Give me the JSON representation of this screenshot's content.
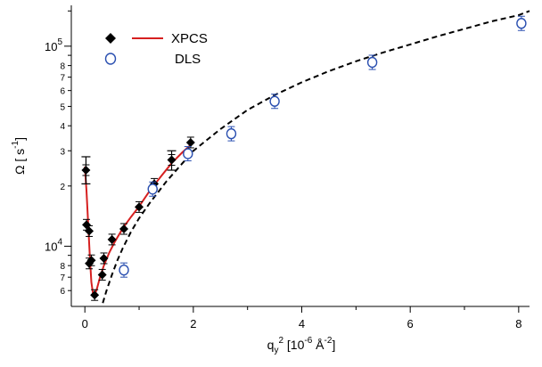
{
  "chart_data": {
    "type": "scatter",
    "title": "",
    "xlabel": {
      "base": "q",
      "sub": "y",
      "sup": "2",
      "rest": "[10",
      "exp": "-6",
      "unit": " Å",
      "unit_exp": "-2",
      "close": "]"
    },
    "ylabel": {
      "base": "Ω [ s",
      "exp": "-1",
      "close": "]"
    },
    "xlim": [
      -0.25,
      8.2
    ],
    "ylim": [
      5000,
      160000
    ],
    "y_scale": "log",
    "x_ticks": [
      0,
      2,
      4,
      6,
      8
    ],
    "x_tick_labels": [
      "0",
      "2",
      "4",
      "6",
      "8"
    ],
    "y_major_ticks": [
      10000,
      100000
    ],
    "y_major_labels": [
      {
        "base": "10",
        "exp": "4"
      },
      {
        "base": "10",
        "exp": "5"
      }
    ],
    "y_minor_ticks": [
      6000,
      7000,
      8000,
      20000,
      30000,
      40000,
      50000,
      60000,
      70000,
      80000
    ],
    "y_minor_labels": [
      "6",
      "7",
      "8",
      "2",
      "3",
      "4",
      "5",
      "6",
      "7",
      "8"
    ],
    "grid": false,
    "legend_position": "top-left",
    "legend": [
      {
        "name": "XPCS",
        "markers": "filled-diamond",
        "line": "solid-red"
      },
      {
        "name": "DLS",
        "markers": "open-circle"
      }
    ],
    "series": [
      {
        "name": "XPCS",
        "marker": "diamond",
        "color": "#000000",
        "points": [
          {
            "x": 0.02,
            "y": 24000,
            "ylo": 20500,
            "yhi": 28000
          },
          {
            "x": 0.03,
            "y": 12800
          },
          {
            "x": 0.08,
            "y": 11900
          },
          {
            "x": 0.08,
            "y": 8200
          },
          {
            "x": 0.12,
            "y": 8500
          },
          {
            "x": 0.18,
            "y": 5700
          },
          {
            "x": 0.32,
            "y": 7200
          },
          {
            "x": 0.35,
            "y": 8700
          },
          {
            "x": 0.5,
            "y": 10800
          },
          {
            "x": 0.72,
            "y": 12200
          },
          {
            "x": 1.0,
            "y": 15700
          },
          {
            "x": 1.28,
            "y": 20500
          },
          {
            "x": 1.6,
            "y": 27000,
            "ylo": 24000,
            "yhi": 30000
          },
          {
            "x": 1.95,
            "y": 33000
          }
        ]
      },
      {
        "name": "DLS",
        "marker": "circle-open",
        "color": "#2a4fb0",
        "points": [
          {
            "x": 0.72,
            "y": 7600
          },
          {
            "x": 1.25,
            "y": 19300
          },
          {
            "x": 1.9,
            "y": 29000
          },
          {
            "x": 2.7,
            "y": 36500
          },
          {
            "x": 3.5,
            "y": 53000
          },
          {
            "x": 5.3,
            "y": 83000
          },
          {
            "x": 8.05,
            "y": 130000
          }
        ]
      }
    ],
    "fits": [
      {
        "name": "XPCS fit",
        "style": "solid",
        "color": "#d62020",
        "x": [
          0.0,
          0.03,
          0.06,
          0.09,
          0.12,
          0.15,
          0.18,
          0.22,
          0.28,
          0.35,
          0.45,
          0.55,
          0.7,
          0.85,
          1.0,
          1.2,
          1.4,
          1.6,
          1.8,
          2.0
        ],
        "y": [
          25000,
          19000,
          13000,
          9000,
          6600,
          5800,
          5700,
          6100,
          7000,
          8000,
          9300,
          10500,
          12300,
          14000,
          15800,
          19000,
          22300,
          26000,
          29500,
          33000
        ]
      },
      {
        "name": "dashed model",
        "style": "dashed",
        "color": "#000000",
        "x": [
          0.33,
          0.4,
          0.5,
          0.6,
          0.7,
          0.85,
          1.0,
          1.2,
          1.5,
          2.0,
          2.5,
          3.0,
          3.5,
          4.0,
          4.5,
          5.0,
          5.5,
          6.0,
          6.5,
          7.0,
          7.5,
          8.0,
          8.2
        ],
        "y": [
          5200,
          6000,
          7200,
          8500,
          9800,
          11800,
          13800,
          16500,
          21000,
          30000,
          38500,
          48000,
          57000,
          66000,
          75000,
          84000,
          93000,
          102000,
          112000,
          122000,
          133000,
          143000,
          150000
        ]
      }
    ]
  }
}
